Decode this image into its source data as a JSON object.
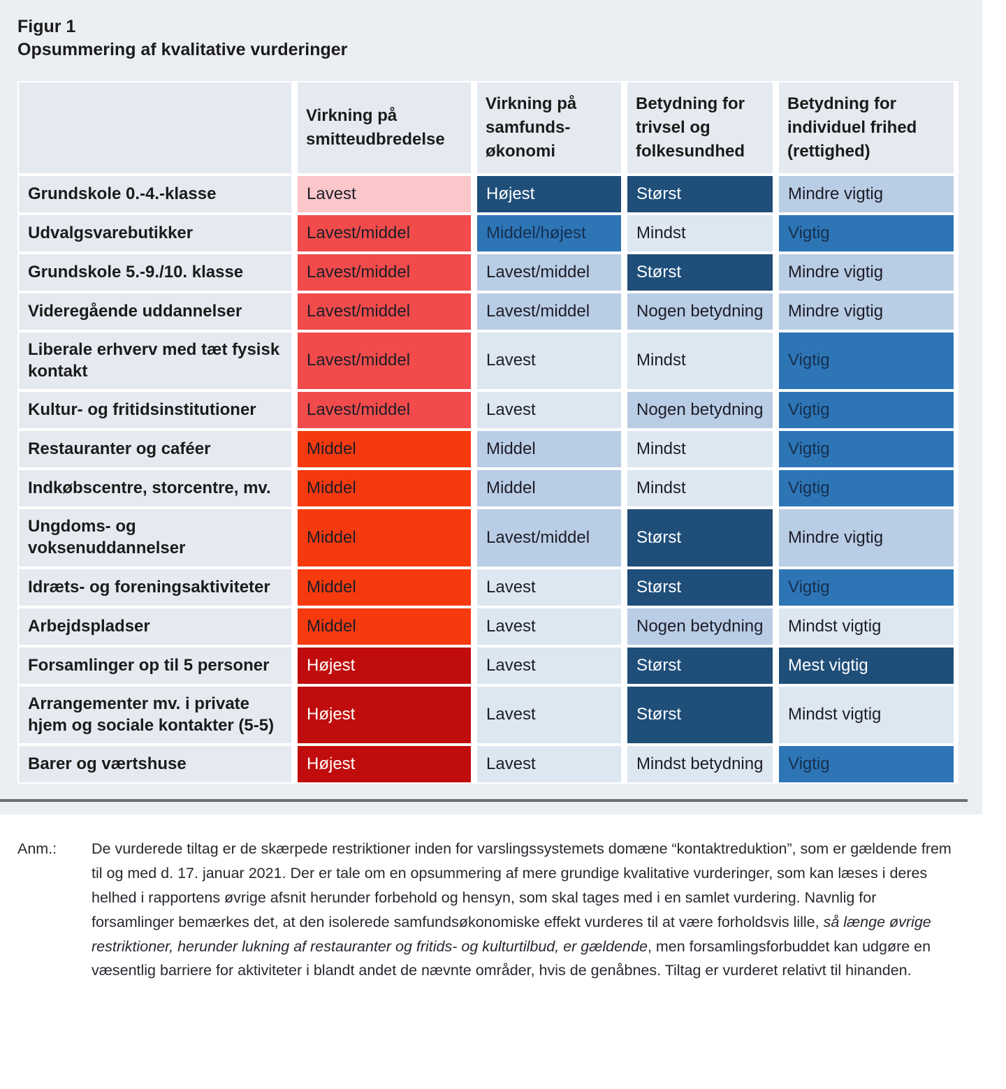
{
  "title": "Figur 1",
  "subtitle": "Opsummering af kvalitative vurderinger",
  "palette": {
    "pink": "#fbc7ca",
    "red": "#f14b4b",
    "orange": "#f63a0e",
    "darkred": "#c00c0c",
    "xlight": "#dde7f2",
    "light": "#b9cde5",
    "medium": "#2e75b6",
    "dark": "#1f4e79",
    "dark_text": "#1d1d28",
    "navy_text": "#14304f",
    "light_text": "#ffffff"
  },
  "table": {
    "headers": [
      "",
      "Virkning på smitteudbredelse",
      "Virkning på samfunds-økonomi",
      "Betydning for trivsel og folkesundhed",
      "Betydning for individuel frihed (rettighed)"
    ],
    "rows": [
      {
        "label": "Grundskole 0.-4.-klasse",
        "cells": [
          {
            "text": "Lavest",
            "bg": "pink"
          },
          {
            "text": "Højest",
            "bg": "dark"
          },
          {
            "text": "Størst",
            "bg": "dark"
          },
          {
            "text": "Mindre vigtig",
            "bg": "light"
          }
        ]
      },
      {
        "label": "Udvalgsvarebutikker",
        "cells": [
          {
            "text": "Lavest/middel",
            "bg": "red"
          },
          {
            "text": "Middel/højest",
            "bg": "medium"
          },
          {
            "text": "Mindst",
            "bg": "xlight"
          },
          {
            "text": "Vigtig",
            "bg": "medium"
          }
        ]
      },
      {
        "label": "Grundskole 5.-9./10. klasse",
        "cells": [
          {
            "text": "Lavest/middel",
            "bg": "red"
          },
          {
            "text": "Lavest/middel",
            "bg": "light"
          },
          {
            "text": "Størst",
            "bg": "dark"
          },
          {
            "text": "Mindre vigtig",
            "bg": "light"
          }
        ]
      },
      {
        "label": "Videregående uddannelser",
        "cells": [
          {
            "text": "Lavest/middel",
            "bg": "red"
          },
          {
            "text": "Lavest/middel",
            "bg": "light"
          },
          {
            "text": "Nogen betydning",
            "bg": "light"
          },
          {
            "text": "Mindre vigtig",
            "bg": "light"
          }
        ]
      },
      {
        "label": "Liberale erhverv med tæt fysisk kontakt",
        "cells": [
          {
            "text": "Lavest/middel",
            "bg": "red"
          },
          {
            "text": "Lavest",
            "bg": "xlight"
          },
          {
            "text": "Mindst",
            "bg": "xlight"
          },
          {
            "text": "Vigtig",
            "bg": "medium"
          }
        ]
      },
      {
        "label": "Kultur- og fritidsinstitutioner",
        "cells": [
          {
            "text": "Lavest/middel",
            "bg": "red"
          },
          {
            "text": "Lavest",
            "bg": "xlight"
          },
          {
            "text": "Nogen betydning",
            "bg": "light"
          },
          {
            "text": "Vigtig",
            "bg": "medium"
          }
        ]
      },
      {
        "label": "Restauranter og caféer",
        "cells": [
          {
            "text": "Middel",
            "bg": "orange"
          },
          {
            "text": "Middel",
            "bg": "light"
          },
          {
            "text": "Mindst",
            "bg": "xlight"
          },
          {
            "text": "Vigtig",
            "bg": "medium"
          }
        ]
      },
      {
        "label": "Indkøbscentre, storcentre, mv.",
        "cells": [
          {
            "text": "Middel",
            "bg": "orange"
          },
          {
            "text": "Middel",
            "bg": "light"
          },
          {
            "text": "Mindst",
            "bg": "xlight"
          },
          {
            "text": "Vigtig",
            "bg": "medium"
          }
        ]
      },
      {
        "label": "Ungdoms- og voksenuddannelser",
        "cells": [
          {
            "text": "Middel",
            "bg": "orange"
          },
          {
            "text": "Lavest/middel",
            "bg": "light"
          },
          {
            "text": "Størst",
            "bg": "dark"
          },
          {
            "text": "Mindre vigtig",
            "bg": "light"
          }
        ]
      },
      {
        "label": "Idræts- og foreningsaktiviteter",
        "cells": [
          {
            "text": "Middel",
            "bg": "orange"
          },
          {
            "text": "Lavest",
            "bg": "xlight"
          },
          {
            "text": "Størst",
            "bg": "dark"
          },
          {
            "text": "Vigtig",
            "bg": "medium"
          }
        ]
      },
      {
        "label": "Arbejdspladser",
        "cells": [
          {
            "text": "Middel",
            "bg": "orange"
          },
          {
            "text": "Lavest",
            "bg": "xlight"
          },
          {
            "text": "Nogen betydning",
            "bg": "light"
          },
          {
            "text": "Mindst vigtig",
            "bg": "xlight"
          }
        ]
      },
      {
        "label": "Forsamlinger op til 5 personer",
        "cells": [
          {
            "text": "Højest",
            "bg": "darkred"
          },
          {
            "text": "Lavest",
            "bg": "xlight"
          },
          {
            "text": "Størst",
            "bg": "dark"
          },
          {
            "text": "Mest vigtig",
            "bg": "dark"
          }
        ]
      },
      {
        "label": "Arrangementer mv. i private hjem og sociale kontakter (5-5)",
        "cells": [
          {
            "text": "Højest",
            "bg": "darkred"
          },
          {
            "text": "Lavest",
            "bg": "xlight"
          },
          {
            "text": "Størst",
            "bg": "dark"
          },
          {
            "text": "Mindst vigtig",
            "bg": "xlight"
          }
        ]
      },
      {
        "label": "Barer og værtshuse",
        "cells": [
          {
            "text": "Højest",
            "bg": "darkred"
          },
          {
            "text": "Lavest",
            "bg": "xlight"
          },
          {
            "text": "Mindst betydning",
            "bg": "xlight"
          },
          {
            "text": "Vigtig",
            "bg": "medium"
          }
        ]
      }
    ]
  },
  "note": {
    "label": "Anm.:",
    "segments": [
      {
        "italic": false,
        "text": "De vurderede tiltag er de skærpede restriktioner inden for varslingssystemets domæne “kontaktreduktion”, som er gældende frem til og med d. 17. januar 2021. Der er tale om en opsummering af mere grundige kvalitative vurderinger, som kan læses i deres helhed i rapportens øvrige afsnit herunder forbehold og hensyn, som skal tages med i en samlet vurdering.  Navnlig for forsamlinger bemærkes det, at den isolerede samfundsøkonomiske effekt vurderes til at være forholdsvis lille, "
      },
      {
        "italic": true,
        "text": "så længe øvrige restriktioner, herunder lukning af restauranter og fritids- og kulturtilbud, er gældende"
      },
      {
        "italic": false,
        "text": ", men forsamlingsforbuddet kan udgøre en væsentlig barriere for aktiviteter i blandt andet de nævnte områder, hvis de genåbnes. Tiltag er vurderet relativt til hinanden."
      }
    ]
  }
}
